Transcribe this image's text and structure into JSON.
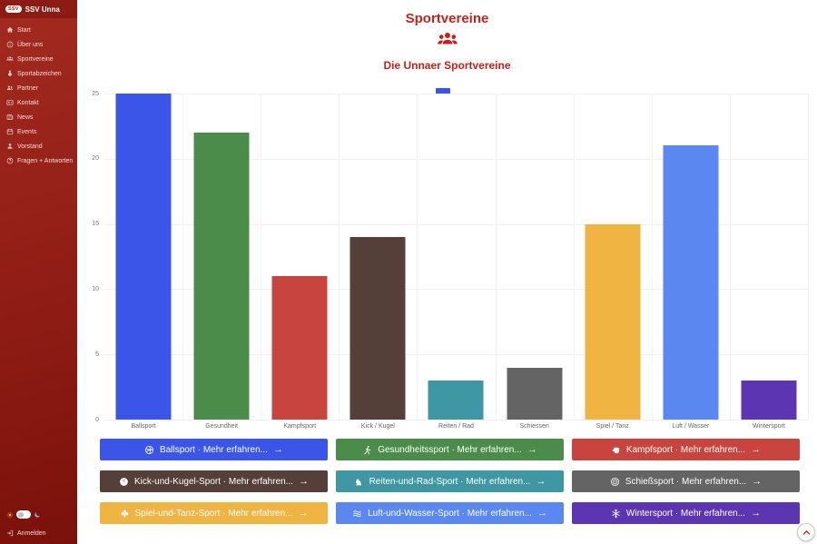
{
  "sidebar": {
    "brand": {
      "logo_text": "SSV",
      "title": "SSV Unna"
    },
    "items": [
      {
        "label": "Start",
        "icon": "home-icon"
      },
      {
        "label": "Über uns",
        "icon": "info-icon"
      },
      {
        "label": "Sportvereine",
        "icon": "group-icon"
      },
      {
        "label": "Sportabzeichen",
        "icon": "medal-icon"
      },
      {
        "label": "Partner",
        "icon": "partners-icon"
      },
      {
        "label": "Kontakt",
        "icon": "contact-card-icon"
      },
      {
        "label": "News",
        "icon": "newspaper-icon"
      },
      {
        "label": "Events",
        "icon": "calendar-icon"
      },
      {
        "label": "Vorstand",
        "icon": "person-icon"
      },
      {
        "label": "Fragen + Antworten",
        "icon": "question-icon"
      }
    ],
    "theme_toggle": {
      "sun_icon": "sun-icon",
      "moon_icon": "moon-icon"
    },
    "login": {
      "label": "Anmelden",
      "icon": "login-icon"
    }
  },
  "header": {
    "title": "Sportvereine",
    "icon": "group-icon",
    "subtitle": "Die Unnaer Sportvereine",
    "accent_color": "#c5221c"
  },
  "chart_data": {
    "type": "bar",
    "title": "Die Unnaer Sportvereine",
    "categories": [
      "Ballsport",
      "Gesundheit",
      "Kampfsport",
      "Kick / Kugel",
      "Reiten / Rad",
      "Schiessen",
      "Spiel / Tanz",
      "Luft / Wasser",
      "Wintersport"
    ],
    "values": [
      25,
      22,
      11,
      14,
      3,
      4,
      15,
      21,
      3
    ],
    "colors": [
      "#3b55e8",
      "#4c8c4a",
      "#c8443e",
      "#544039",
      "#3f97a3",
      "#646464",
      "#f0b442",
      "#5a87f0",
      "#5c35b2"
    ],
    "xlabel": "",
    "ylabel": "",
    "ylim": [
      0,
      25
    ],
    "yticks": [
      0,
      5,
      10,
      15,
      20,
      25
    ],
    "grid": true,
    "legend": {
      "position": "top",
      "label": "",
      "swatch_color": "#3b55e8"
    }
  },
  "buttons": [
    {
      "label": "Ballsport · Mehr erfahren...",
      "icon": "volleyball-icon",
      "color": "#3b55e8",
      "arrow": "→"
    },
    {
      "label": "Gesundheitssport · Mehr erfahren...",
      "icon": "runner-icon",
      "color": "#4c8c4a",
      "arrow": "→"
    },
    {
      "label": "Kampfsport · Mehr erfahren...",
      "icon": "fist-icon",
      "color": "#c8443e",
      "arrow": "→"
    },
    {
      "label": "Kick-und-Kugel-Sport · Mehr erfahren...",
      "icon": "bowling-icon",
      "color": "#544039",
      "arrow": "→"
    },
    {
      "label": "Reiten-und-Rad-Sport · Mehr erfahren...",
      "icon": "horse-icon",
      "color": "#3f97a3",
      "arrow": "→"
    },
    {
      "label": "Schießsport · Mehr erfahren...",
      "icon": "target-icon",
      "color": "#646464",
      "arrow": "→"
    },
    {
      "label": "Spiel-und-Tanz-Sport · Mehr erfahren...",
      "icon": "club-icon",
      "color": "#f0b442",
      "arrow": "→"
    },
    {
      "label": "Luft-und-Wasser-Sport · Mehr erfahren...",
      "icon": "waves-icon",
      "color": "#5a87f0",
      "arrow": "→"
    },
    {
      "label": "Wintersport · Mehr erfahren...",
      "icon": "snowflake-icon",
      "color": "#5c35b2",
      "arrow": "→"
    }
  ],
  "scroll_top": {
    "icon": "chevron-up-icon"
  }
}
